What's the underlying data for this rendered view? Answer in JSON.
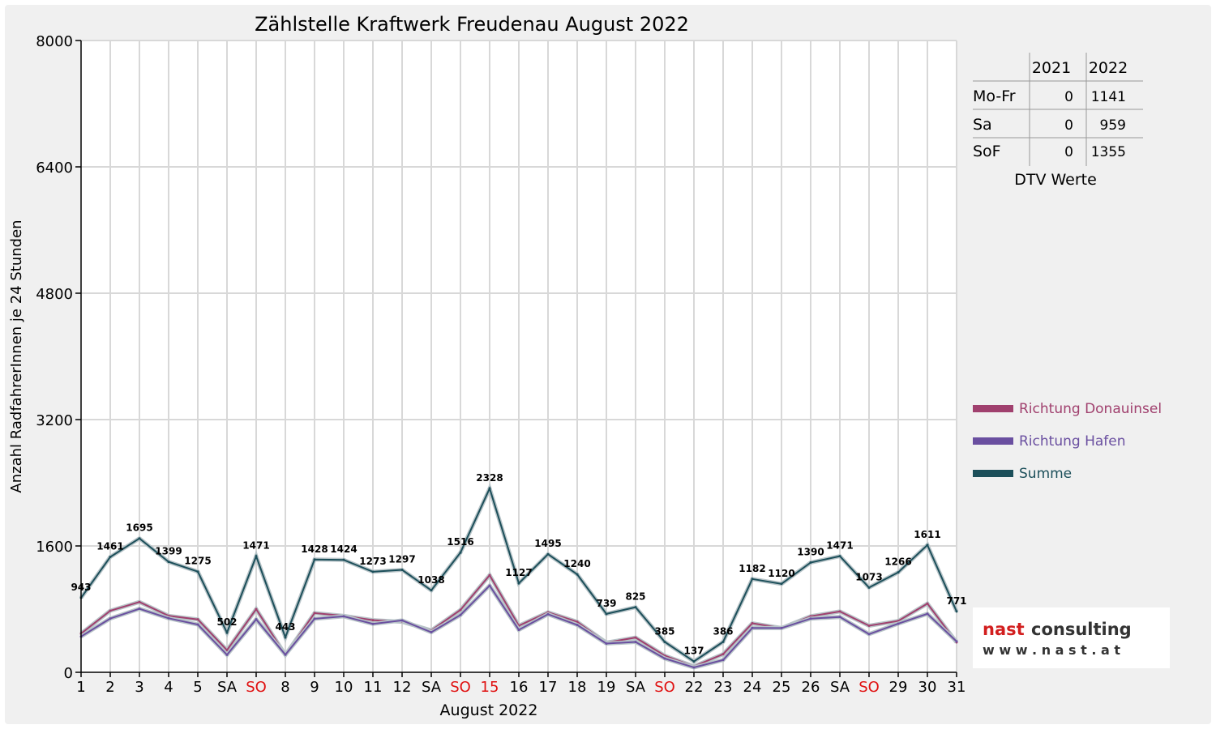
{
  "chart_data": {
    "type": "line",
    "title": "Zählstelle Kraftwerk Freudenau August 2022",
    "xlabel": "August 2022",
    "ylabel": "Anzahl RadfahrerInnen je 24 Stunden",
    "ylim": [
      0,
      8000
    ],
    "yticks": [
      "0",
      "1600",
      "3200",
      "4800",
      "6400",
      "8000"
    ],
    "grid": true,
    "legend_position": "right",
    "categories": [
      "1",
      "2",
      "3",
      "4",
      "5",
      "SA",
      "SO",
      "8",
      "9",
      "10",
      "11",
      "12",
      "SA",
      "SO",
      "15",
      "16",
      "17",
      "18",
      "19",
      "SA",
      "SO",
      "22",
      "23",
      "24",
      "25",
      "26",
      "SA",
      "SO",
      "29",
      "30",
      "31"
    ],
    "highlight_categories": [
      6,
      13,
      14,
      20,
      27
    ],
    "series": [
      {
        "name": "Richtung Donauinsel",
        "color": "#a0406e",
        "values": [
          490,
          780,
          890,
          715,
          670,
          280,
          800,
          220,
          750,
          715,
          660,
          640,
          530,
          790,
          1230,
          590,
          760,
          640,
          375,
          440,
          210,
          75,
          230,
          620,
          560,
          710,
          770,
          590,
          650,
          870,
          380
        ]
      },
      {
        "name": "Richtung Hafen",
        "color": "#6a4fa0",
        "values": [
          453,
          681,
          805,
          684,
          605,
          222,
          671,
          223,
          678,
          709,
          613,
          657,
          508,
          726,
          1098,
          537,
          735,
          600,
          364,
          385,
          175,
          62,
          156,
          562,
          560,
          680,
          701,
          483,
          616,
          741,
          391
        ]
      },
      {
        "name": "Summe",
        "color": "#1c4f5a",
        "values": [
          943,
          1461,
          1695,
          1399,
          1275,
          502,
          1471,
          443,
          1428,
          1424,
          1273,
          1297,
          1038,
          1516,
          2328,
          1127,
          1495,
          1240,
          739,
          825,
          385,
          137,
          386,
          1182,
          1120,
          1390,
          1471,
          1073,
          1266,
          1611,
          771
        ]
      }
    ],
    "data_labels": [
      "943",
      "1461",
      "1695",
      "1399",
      "1275",
      "502",
      "1471",
      "443",
      "1428",
      "1424",
      "1273",
      "1297",
      "1038",
      "1516",
      "2328",
      "1127",
      "1495",
      "1240",
      "739",
      "825",
      "385",
      "137",
      "386",
      "1182",
      "1120",
      "1390",
      "1471",
      "1073",
      "1266",
      "1611",
      "771"
    ]
  },
  "dtv_table": {
    "headers": [
      "",
      "2021",
      "2022"
    ],
    "rows": [
      {
        "label": "Mo-Fr",
        "v2021": "0",
        "v2022": "1141"
      },
      {
        "label": "Sa",
        "v2021": "0",
        "v2022": "959"
      },
      {
        "label": "SoF",
        "v2021": "0",
        "v2022": "1355"
      }
    ],
    "caption": "DTV Werte"
  },
  "logo": {
    "name": "nast consulting",
    "url_text": "w w w . n a s t . a t"
  }
}
